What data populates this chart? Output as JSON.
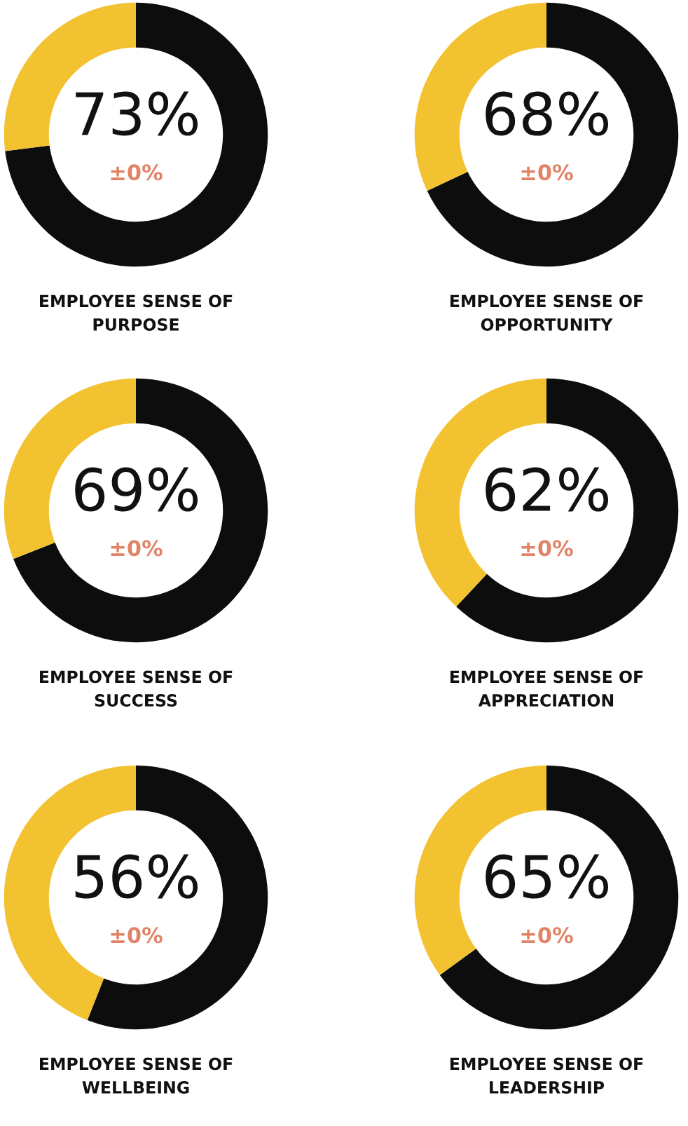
{
  "chart_data": [
    {
      "type": "donut",
      "title": "EMPLOYEE SENSE OF\nPURPOSE",
      "categories": [
        null,
        null
      ],
      "values": [
        73,
        27
      ],
      "colors": [
        "#0d0d0d",
        "#f2c230"
      ],
      "annotations": [
        "73%",
        "±0%"
      ]
    },
    {
      "type": "donut",
      "title": "EMPLOYEE SENSE OF\nOPPORTUNITY",
      "categories": [
        null,
        null
      ],
      "values": [
        68,
        32
      ],
      "colors": [
        "#0d0d0d",
        "#f2c230"
      ],
      "annotations": [
        "68%",
        "±0%"
      ]
    },
    {
      "type": "donut",
      "title": "EMPLOYEE SENSE OF\nSUCCESS",
      "categories": [
        null,
        null
      ],
      "values": [
        69,
        31
      ],
      "colors": [
        "#0d0d0d",
        "#f2c230"
      ],
      "annotations": [
        "69%",
        "±0%"
      ]
    },
    {
      "type": "donut",
      "title": "EMPLOYEE SENSE OF\nAPPRECIATION",
      "categories": [
        null,
        null
      ],
      "values": [
        62,
        38
      ],
      "colors": [
        "#0d0d0d",
        "#f2c230"
      ],
      "annotations": [
        "62%",
        "±0%"
      ]
    },
    {
      "type": "donut",
      "title": "EMPLOYEE SENSE OF\nWELLBEING",
      "categories": [
        null,
        null
      ],
      "values": [
        56,
        44
      ],
      "colors": [
        "#0d0d0d",
        "#f2c230"
      ],
      "annotations": [
        "56%",
        "±0%"
      ]
    },
    {
      "type": "donut",
      "title": "EMPLOYEE SENSE OF\nLEADERSHIP",
      "categories": [
        null,
        null
      ],
      "values": [
        65,
        35
      ],
      "colors": [
        "#0d0d0d",
        "#f2c230"
      ],
      "annotations": [
        "65%",
        "±0%"
      ]
    }
  ]
}
